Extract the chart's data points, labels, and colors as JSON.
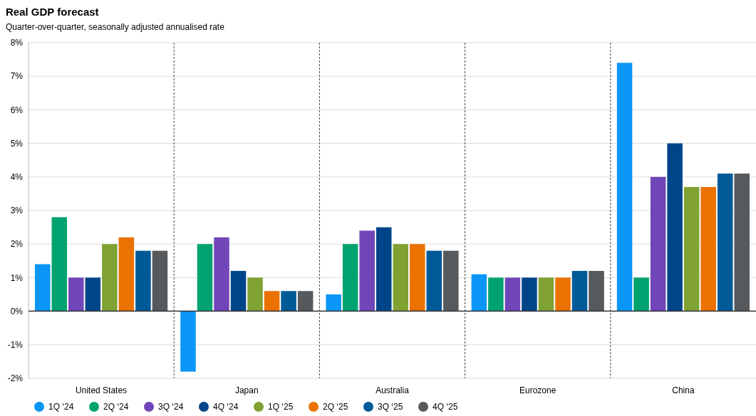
{
  "chart_data": {
    "type": "bar",
    "title": "Real GDP forecast",
    "subtitle": "Quarter-over-quarter, seasonally adjusted annualised rate",
    "categories": [
      "United States",
      "Japan",
      "Australia",
      "Eurozone",
      "China"
    ],
    "series": [
      {
        "name": "1Q ‘24",
        "color": "#0a96f7",
        "values": [
          1.4,
          -1.8,
          0.5,
          1.1,
          7.4
        ]
      },
      {
        "name": "2Q ‘24",
        "color": "#00a370",
        "values": [
          2.8,
          2.0,
          2.0,
          1.0,
          1.0
        ]
      },
      {
        "name": "3Q ‘24",
        "color": "#7046b9",
        "values": [
          1.0,
          2.2,
          2.4,
          1.0,
          4.0
        ]
      },
      {
        "name": "4Q ‘24",
        "color": "#004589",
        "values": [
          1.0,
          1.2,
          2.5,
          1.0,
          5.0
        ]
      },
      {
        "name": "1Q ‘25",
        "color": "#7fa233",
        "values": [
          2.0,
          1.0,
          2.0,
          1.0,
          3.7
        ]
      },
      {
        "name": "2Q ‘25",
        "color": "#eb7100",
        "values": [
          2.2,
          0.6,
          2.0,
          1.0,
          3.7
        ]
      },
      {
        "name": "3Q ‘25",
        "color": "#005a98",
        "values": [
          1.8,
          0.6,
          1.8,
          1.2,
          4.1
        ]
      },
      {
        "name": "4Q ‘25",
        "color": "#575a5d",
        "values": [
          1.8,
          0.6,
          1.8,
          1.2,
          4.1
        ]
      }
    ],
    "ylim": [
      -2,
      8
    ],
    "yticks": [
      {
        "value": -2,
        "label": "-2%"
      },
      {
        "value": -1,
        "label": "-1%"
      },
      {
        "value": 0,
        "label": "0%"
      },
      {
        "value": 1,
        "label": "1%"
      },
      {
        "value": 2,
        "label": "2%"
      },
      {
        "value": 3,
        "label": "3%"
      },
      {
        "value": 4,
        "label": "4%"
      },
      {
        "value": 5,
        "label": "5%"
      },
      {
        "value": 6,
        "label": "6%"
      },
      {
        "value": 7,
        "label": "7%"
      },
      {
        "value": 8,
        "label": "8%"
      }
    ],
    "grid": "y",
    "legend": "bottom"
  }
}
